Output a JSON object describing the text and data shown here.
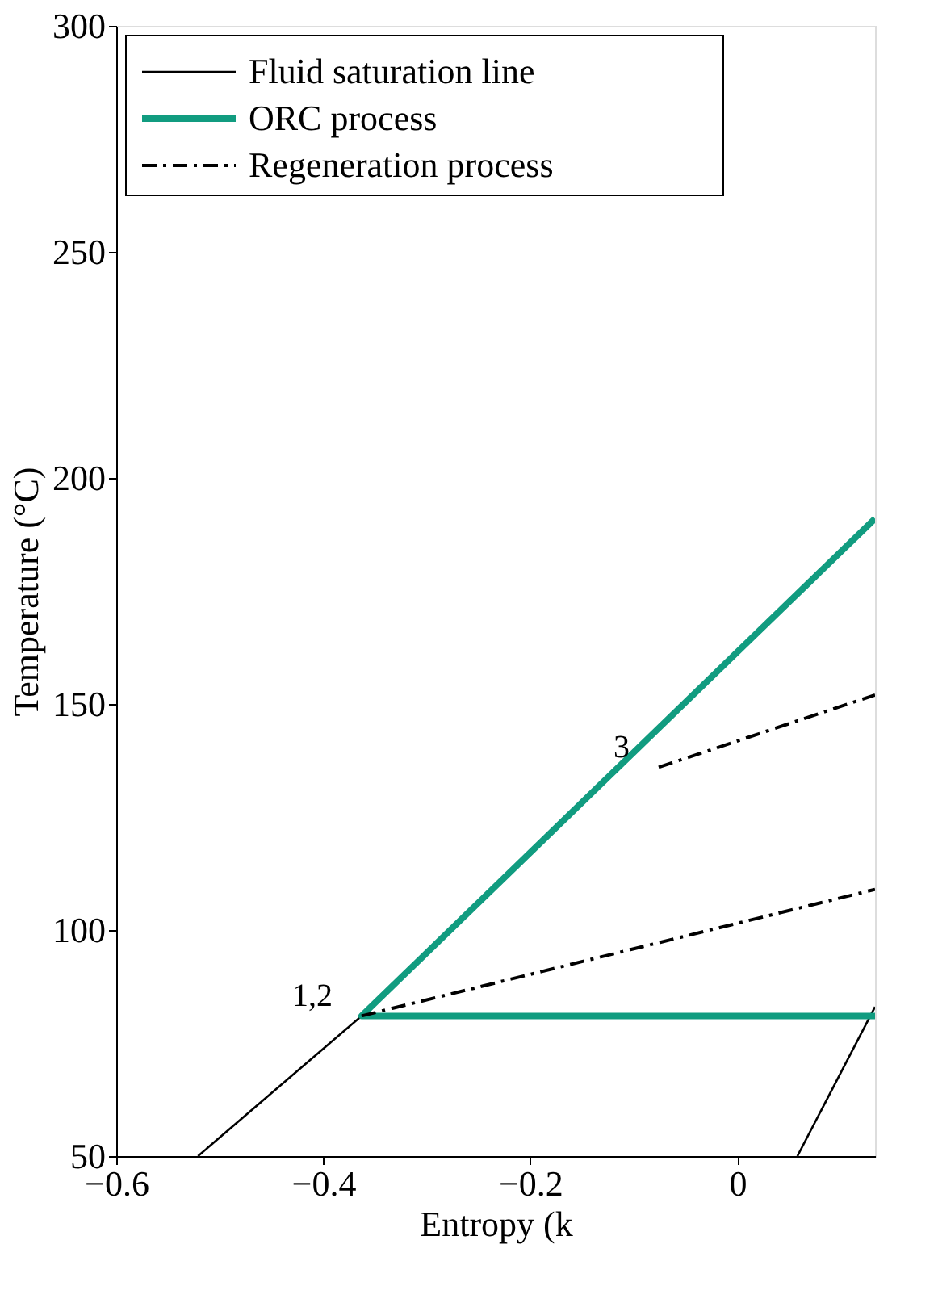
{
  "chart_data": {
    "type": "line",
    "xlabel": "Entropy (k",
    "ylabel": "Temperature (°C)",
    "xlim": [
      -0.6,
      0.133
    ],
    "xticks": [
      -0.6,
      -0.4,
      -0.2,
      0
    ],
    "ylim": [
      50,
      300
    ],
    "yticks": [
      50,
      100,
      150,
      200,
      250,
      300
    ],
    "grid": false,
    "legend": "top left",
    "series": [
      {
        "name": "Fluid saturation line",
        "color": "#000000",
        "line_style": "solid",
        "x": [
          -0.521,
          -0.363
        ],
        "values": [
          50,
          81
        ]
      },
      {
        "color": "#000000",
        "line_style": "solid",
        "x": [
          0.058,
          0.133
        ],
        "values": [
          50,
          83
        ]
      },
      {
        "name": "ORC process",
        "color": "#119c80",
        "line_style": "solid",
        "x": [
          0.133,
          -0.363,
          0.133
        ],
        "values": [
          191,
          81,
          81
        ]
      },
      {
        "name": "Regeneration process",
        "color": "#000000",
        "line_style": "dashdot",
        "x": [
          -0.363,
          0.133
        ],
        "values": [
          81,
          109
        ]
      },
      {
        "color": "#000000",
        "line_style": "dashdot",
        "x": [
          -0.076,
          0.133
        ],
        "values": [
          136,
          152
        ]
      }
    ],
    "annotations": [
      {
        "text": "1,2",
        "x": -0.363,
        "y": 81
      },
      {
        "text": "3",
        "x": -0.076,
        "y": 136
      }
    ]
  }
}
